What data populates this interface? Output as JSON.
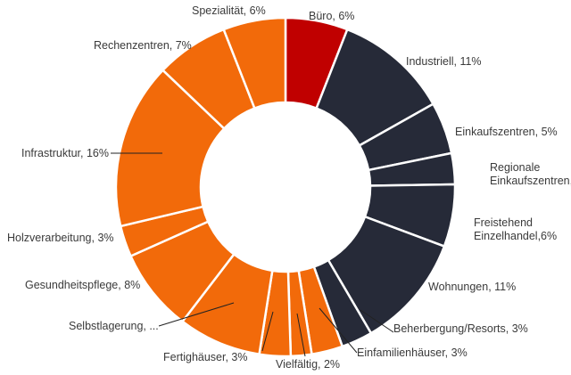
{
  "chart_data": {
    "type": "pie",
    "donut": true,
    "start_angle_deg": 0,
    "direction": "clockwise",
    "categories": [
      "Büro",
      "Industriell",
      "Einkaufszentren",
      "Regionale Einkaufszentren",
      "Freistehend Einzelhandel",
      "Wohnungen",
      "Beherbergung/Resorts",
      "Einfamilienhäuser",
      "Vielfältig",
      "Fertighäuser",
      "Selbstlagerung",
      "Gesundheitspflege",
      "Holzverarbeitung",
      "Infrastruktur",
      "Rechenzentren",
      "Spezialität"
    ],
    "values": [
      6,
      11,
      5,
      3,
      6,
      11,
      3,
      3,
      2,
      3,
      8,
      8,
      3,
      16,
      7,
      6
    ],
    "colors": [
      "#c00000",
      "#262a38",
      "#262a38",
      "#262a38",
      "#262a38",
      "#262a38",
      "#262a38",
      "#f26a0a",
      "#f26a0a",
      "#f26a0a",
      "#f26a0a",
      "#f26a0a",
      "#f26a0a",
      "#f26a0a",
      "#f26a0a",
      "#f26a0a"
    ],
    "labels": [
      [
        "Büro, 6%"
      ],
      [
        "Industriell, 11%"
      ],
      [
        "Einkaufszentren, 5%"
      ],
      [
        "Regionale",
        "Einkaufszentren, 3%"
      ],
      [
        "Freistehend",
        "Einzelhandel,6%"
      ],
      [
        "Wohnungen, 11%"
      ],
      [
        "Beherbergung/Resorts, 3%"
      ],
      [
        "Einfamilienhäuser, 3%"
      ],
      [
        "Vielfältig, 2%"
      ],
      [
        "Fertighäuser, 3%"
      ],
      [
        "Selbstlagerung, ..."
      ],
      [
        "Gesundheitspflege, 8%"
      ],
      [
        "Holzverarbeitung, 3%"
      ],
      [
        "Infrastruktur, 16%"
      ],
      [
        "Rechenzentren, 7%"
      ],
      [
        "Spezialität, 6%"
      ]
    ],
    "legend": "none"
  }
}
